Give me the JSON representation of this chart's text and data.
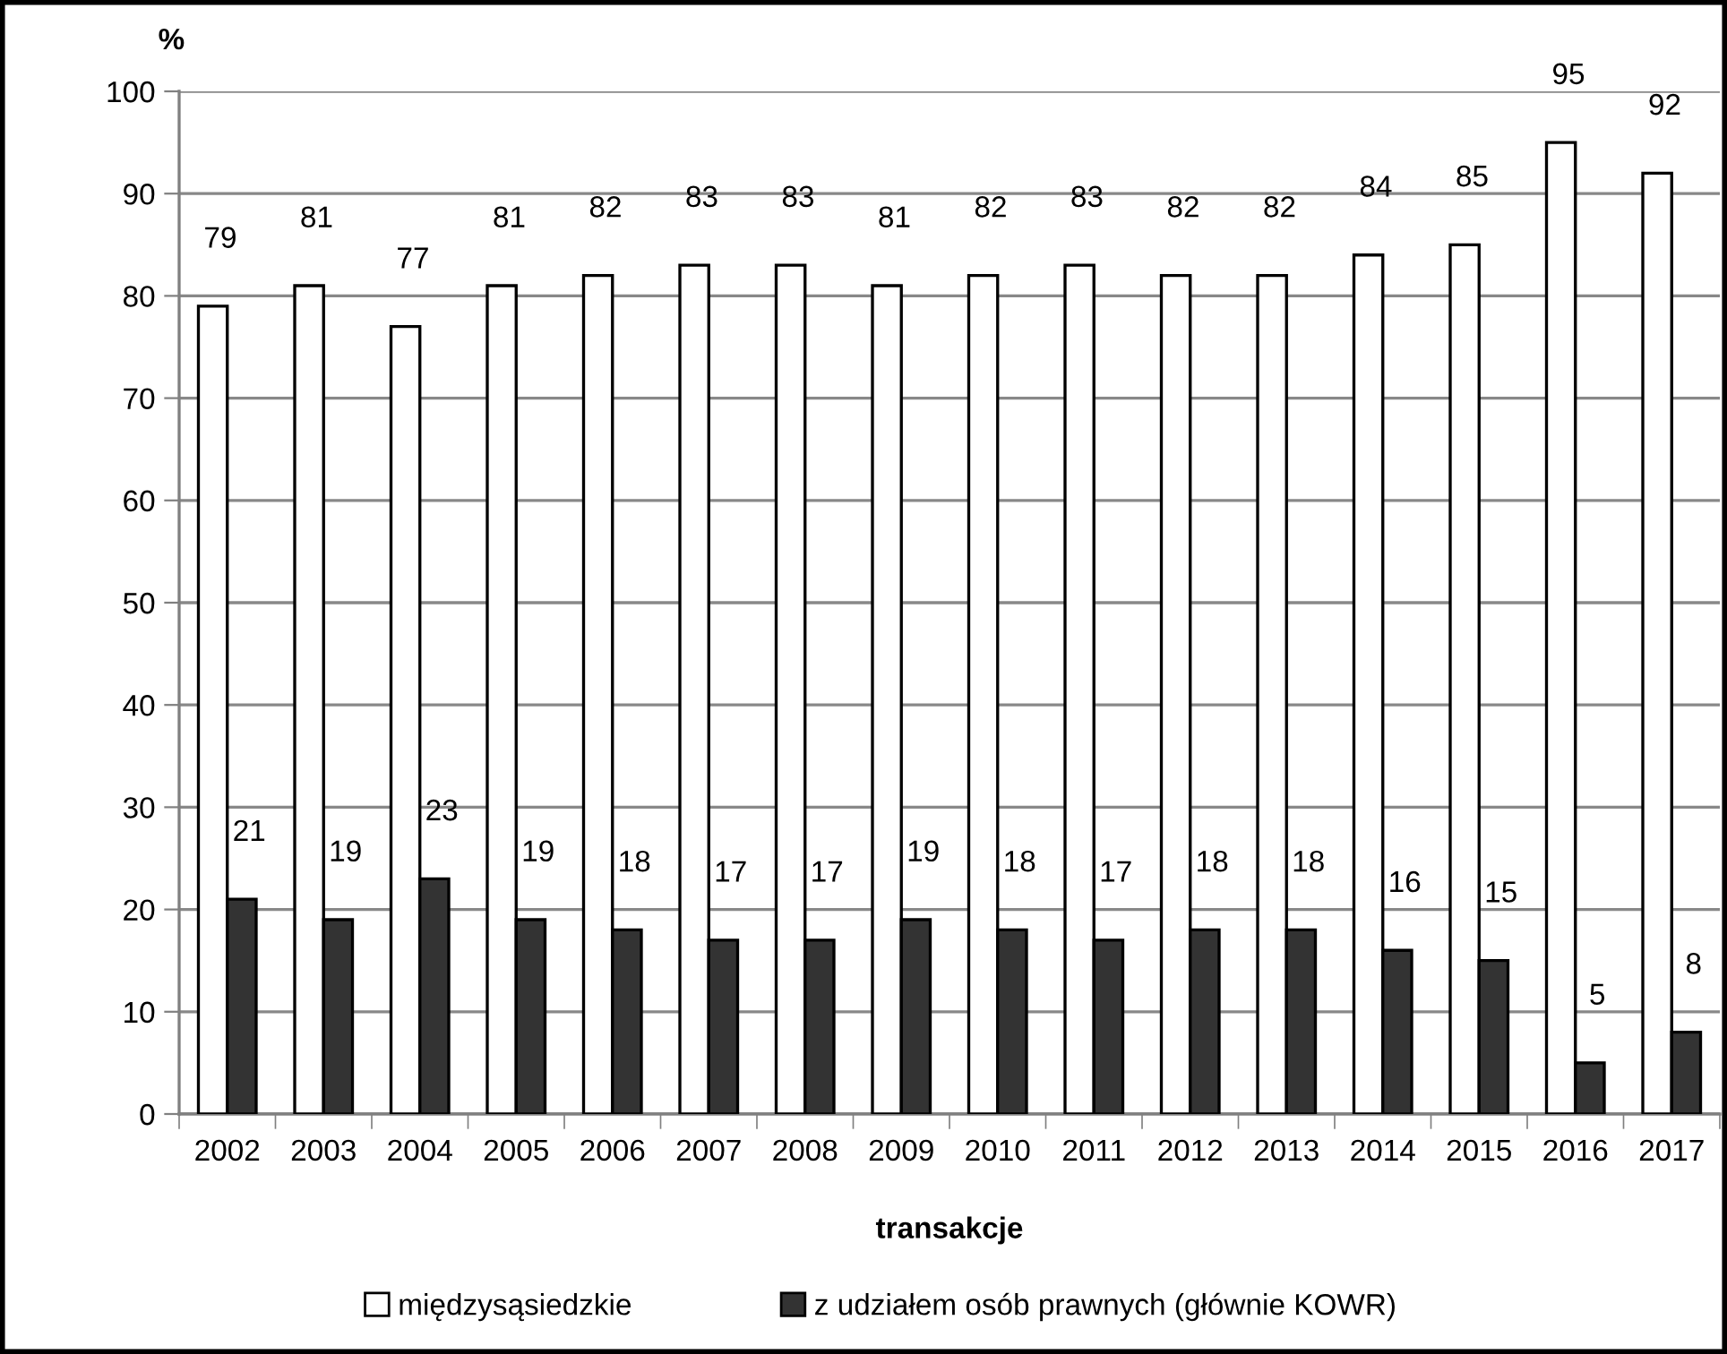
{
  "chart_data": {
    "type": "bar",
    "ylabel": "%",
    "xlabel": "transakcje",
    "categories": [
      "2002",
      "2003",
      "2004",
      "2005",
      "2006",
      "2007",
      "2008",
      "2009",
      "2010",
      "2011",
      "2012",
      "2013",
      "2014",
      "2015",
      "2016",
      "2017"
    ],
    "series": [
      {
        "name": "międzysąsiedzkie",
        "color": "#ffffff",
        "values": [
          79,
          81,
          77,
          81,
          82,
          83,
          83,
          81,
          82,
          83,
          82,
          82,
          84,
          85,
          95,
          92
        ]
      },
      {
        "name": "z udziałem osób prawnych (głównie KOWR)",
        "color": "#333333",
        "values": [
          21,
          19,
          23,
          19,
          18,
          17,
          17,
          19,
          18,
          17,
          18,
          18,
          16,
          15,
          5,
          8
        ]
      }
    ],
    "ylim": [
      0,
      100
    ],
    "yticks": [
      0,
      10,
      20,
      30,
      40,
      50,
      60,
      70,
      80,
      90,
      100
    ],
    "grid": "y",
    "legend": "bottom",
    "data_labels": true
  }
}
